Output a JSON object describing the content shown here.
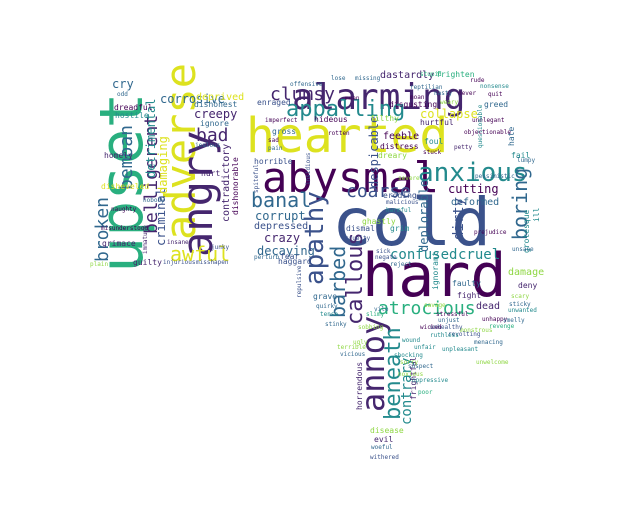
{
  "palette": {
    "yellow": "#dde21f",
    "purple": "#45266e",
    "darkpurple": "#440154",
    "teal": "#238a8d",
    "green": "#29af7f",
    "blue": "#31688e",
    "lime": "#8fd744",
    "indigo": "#3b528b"
  },
  "words": {
    "upset": "upset",
    "adverse": "adverse",
    "angry": "angry",
    "awful": "awful",
    "bemoan": "bemoan",
    "broken": "broken",
    "belligerent": "belligerent",
    "criminal": "criminal",
    "damaging": "damaging",
    "detrimental": "detrimental",
    "corrosive": "corrosive",
    "creepy": "creepy",
    "bad": "bad",
    "cry": "cry",
    "deprived": "deprived",
    "dishonest": "dishonest",
    "dreadful": "dreadful",
    "hostile": "hostile",
    "homely": "homely",
    "disheveled": "disheveled",
    "grimace": "grimace",
    "guilty": "guilty",
    "immature": "immature",
    "naughty": "naughty",
    "hurt": "hurt",
    "contradictory": "contradictory",
    "dishonorable": "dishonorable",
    "ignore": "ignore",
    "injurious": "injurious",
    "misshapen": "misshapen",
    "misunderstood": "misunderstood",
    "insane": "insane",
    "nobody": "nobody",
    "odd": "odd",
    "plain": "plain",
    "alarming": "alarming",
    "hearted": "hearted",
    "abysmal": "abysmal",
    "anxious": "anxious",
    "appalling": "appalling",
    "clumsy": "clumsy",
    "cold": "cold",
    "hard": "hard",
    "banal": "banal",
    "coarse": "coarse",
    "corrupt": "corrupt",
    "crazy": "crazy",
    "depressed": "depressed",
    "decaying": "decaying",
    "apathy": "apathy",
    "callous": "callous",
    "barbed": "barbed",
    "annoy": "annoy",
    "beneath": "beneath",
    "atrocious": "atrocious",
    "contrary": "contrary",
    "confused": "confused",
    "cruel": "cruel",
    "boring": "boring",
    "cutting": "cutting",
    "deformed": "deformed",
    "collapse": "collapse",
    "dastardly": "dastardly",
    "frighten": "frighten",
    "disgusting": "disgusting",
    "greed": "greed",
    "despicable": "despicable",
    "feeble": "feeble",
    "distress": "distress",
    "foul": "foul",
    "eroding": "eroding",
    "deplorable": "deplorable",
    "dirty": "dirty",
    "dismal": "dismal",
    "grim": "grim",
    "ghastly": "ghastly",
    "fail": "fail",
    "hate": "hate",
    "ill": "ill",
    "damage": "damage",
    "deny": "deny",
    "dead": "dead",
    "fight": "fight",
    "faulty": "faulty",
    "ignorant": "ignorant",
    "disease": "disease",
    "evil": "evil",
    "frightful": "frightful",
    "horrendous": "horrendous",
    "horrible": "horrible",
    "haggard": "haggard",
    "fear": "fear",
    "grave": "grave",
    "enraged": "enraged",
    "imperfect": "imperfect",
    "hideous": "hideous",
    "gross": "gross",
    "rotten": "rotten",
    "filthy": "filthy",
    "hurtful": "hurtful",
    "petty": "petty",
    "unelegant": "unelegant",
    "quit": "quit",
    "rude": "rude",
    "grotesque": "grotesque",
    "unsane": "unsane",
    "lumpy": "lumpy",
    "insidious": "insidious",
    "dreary": "dreary",
    "sick": "sick",
    "stinky": "stinky",
    "quirky": "quirky",
    "sticky": "sticky",
    "questionable": "questionable",
    "offensive": "offensive",
    "missing": "missing",
    "repulsive": "repulsive",
    "prejudice": "prejudice",
    "severe": "severe",
    "reject": "reject",
    "unhappy": "unhappy",
    "unwanted": "unwanted",
    "unwelcome": "unwelcome",
    "spiteful": "spiteful",
    "perturb": "perturb",
    "negate": "negate",
    "sad": "sad",
    "scary": "scary",
    "junky": "junky",
    "malicious": "malicious",
    "harmful": "harmful",
    "monstrous": "monstrous",
    "cruelty": "cruelty",
    "weary": "weary",
    "unfair": "unfair",
    "stupid": "stupid",
    "ugly": "ugly",
    "vile": "vile",
    "woeful": "woeful",
    "stressful": "stressful",
    "unjust": "unjust",
    "wicked": "wicked",
    "wound": "wound",
    "suspect": "suspect",
    "stuck": "stuck",
    "noxious": "noxious",
    "oppressive": "oppressive",
    "pain": "pain",
    "poor": "poor",
    "jealous": "jealous",
    "lose": "lose",
    "mean": "mean",
    "moan": "moan",
    "nasty": "nasty",
    "never": "never",
    "nonsense": "nonsense",
    "objectionable": "objectionable",
    "pessimistic": "pessimistic",
    "reptilian": "reptilian",
    "shocking": "shocking",
    "sorry": "sorry",
    "terrible": "terrible",
    "vicious": "vicious",
    "withered": "withered",
    "smelly": "smelly",
    "menacing": "menacing",
    "revenge": "revenge",
    "revolting": "revolting",
    "ruthless": "ruthless",
    "savage": "savage",
    "slimy": "slimy",
    "sobbing": "sobbing",
    "tense": "tense",
    "unhealthy": "unhealthy",
    "unpleasant": "unpleasant"
  }
}
